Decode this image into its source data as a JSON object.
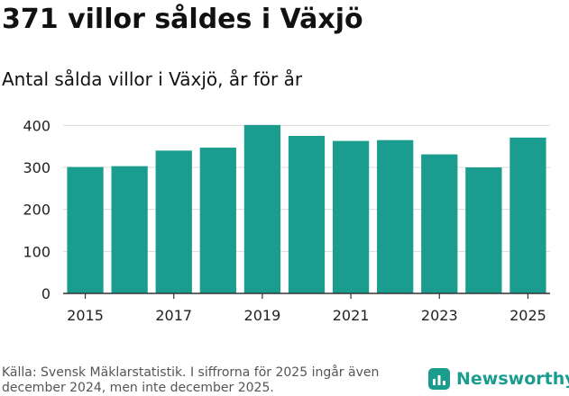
{
  "header": {
    "title": "371 villor såldes i Växjö",
    "subtitle": "Antal sålda villor i Växjö, år för år"
  },
  "chart_data": {
    "type": "bar",
    "categories": [
      "2015",
      "2016",
      "2017",
      "2018",
      "2019",
      "2020",
      "2021",
      "2022",
      "2023",
      "2024",
      "2025"
    ],
    "values": [
      301,
      303,
      340,
      347,
      401,
      375,
      363,
      365,
      331,
      300,
      371
    ],
    "x_tick_labels": [
      "2015",
      "2017",
      "2019",
      "2021",
      "2023",
      "2025"
    ],
    "y_ticks": [
      0,
      100,
      200,
      300,
      400
    ],
    "ylim": [
      0,
      420
    ],
    "grid": true,
    "bar_color": "#1a9c8f"
  },
  "footer": {
    "source": "Källa: Svensk Mäklarstatistik. I siffrorna för 2025 ingår även december 2024, men inte december 2025.",
    "logo_text": "Newsworthy",
    "logo_color": "#1a9c8f",
    "logo_icon": "bar-chart-icon"
  }
}
